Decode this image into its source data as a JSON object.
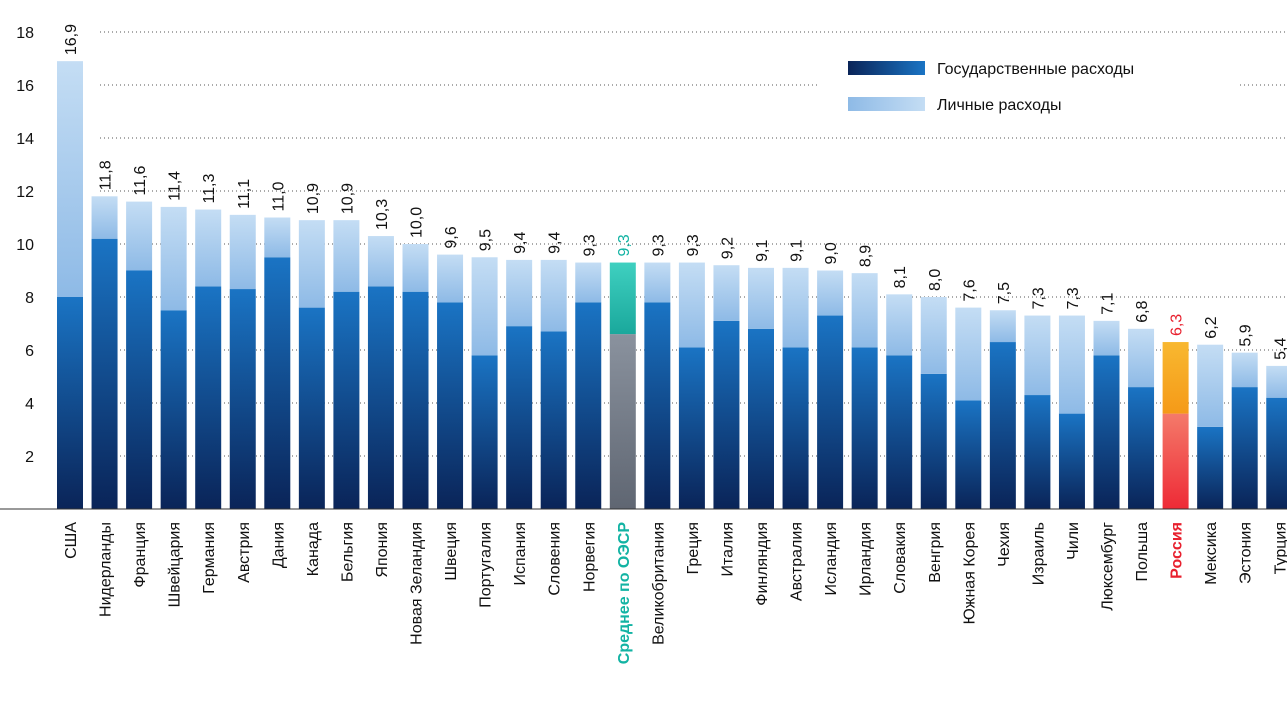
{
  "chart_data": {
    "type": "stacked_bar",
    "categories": [
      "США",
      "Нидерланды",
      "Франция",
      "Швейцария",
      "Германия",
      "Австрия",
      "Дания",
      "Канада",
      "Бельгия",
      "Япония",
      "Новая Зеландия",
      "Швеция",
      "Португалия",
      "Испания",
      "Словения",
      "Норвегия",
      "Среднее по ОЭСР",
      "Великобритания",
      "Греция",
      "Италия",
      "Финляндия",
      "Австралия",
      "Исландия",
      "Ирландия",
      "Словакия",
      "Венгрия",
      "Южная Корея",
      "Чехия",
      "Израиль",
      "Чили",
      "Люксембург",
      "Польша",
      "Россия",
      "Мексика",
      "Эстония",
      "Турция"
    ],
    "series": [
      {
        "name": "Государственные расходы",
        "color": "#0a2458",
        "color_end": "#1a74c4",
        "values": [
          8.0,
          10.2,
          9.0,
          7.5,
          8.4,
          8.3,
          9.5,
          7.6,
          8.2,
          8.4,
          8.2,
          7.8,
          5.8,
          6.9,
          6.7,
          7.8,
          6.6,
          7.8,
          6.1,
          7.1,
          6.8,
          6.1,
          7.3,
          6.1,
          5.8,
          5.1,
          4.1,
          6.3,
          4.3,
          3.6,
          5.8,
          4.6,
          3.6,
          3.1,
          4.6,
          4.2
        ]
      },
      {
        "name": "Личные расходы",
        "color": "#8ebae6",
        "color_end": "#c4ddf4",
        "values": [
          8.9,
          1.6,
          2.6,
          3.9,
          2.9,
          2.8,
          1.5,
          3.3,
          2.7,
          1.9,
          1.8,
          1.8,
          3.7,
          2.5,
          2.7,
          1.5,
          2.7,
          1.5,
          3.2,
          2.1,
          2.3,
          3.0,
          1.7,
          2.8,
          2.3,
          2.9,
          3.5,
          1.2,
          3.0,
          3.7,
          1.3,
          2.2,
          2.7,
          3.1,
          1.3,
          1.2
        ]
      }
    ],
    "totals": [
      16.9,
      11.8,
      11.6,
      11.4,
      11.3,
      11.1,
      11.0,
      10.9,
      10.9,
      10.3,
      10.0,
      9.6,
      9.5,
      9.4,
      9.4,
      9.3,
      9.3,
      9.3,
      9.3,
      9.2,
      9.1,
      9.1,
      9.0,
      8.9,
      8.1,
      8.0,
      7.6,
      7.5,
      7.3,
      7.3,
      7.1,
      6.8,
      6.3,
      6.2,
      5.9,
      5.4
    ],
    "total_labels": [
      "16,9",
      "11,8",
      "11,6",
      "11,4",
      "11,3",
      "11,1",
      "11,0",
      "10,9",
      "10,9",
      "10,3",
      "10,0",
      "9,6",
      "9,5",
      "9,4",
      "9,4",
      "9,3",
      "9,3",
      "9,3",
      "9,3",
      "9,2",
      "9,1",
      "9,1",
      "9,0",
      "8,9",
      "8,1",
      "8,0",
      "7,6",
      "7,5",
      "7,3",
      "7,3",
      "7,1",
      "6,8",
      "6,3",
      "6,2",
      "5,9",
      "5,4"
    ],
    "highlights": [
      {
        "category": "Среднее по ОЭСР",
        "colors": [
          "#5f6672",
          "#8a929e"
        ],
        "private_colors": [
          "#1aa89c",
          "#3fd0c0"
        ],
        "label_color": "#12b3a3"
      },
      {
        "category": "Россия",
        "colors": [
          "#ee2a36",
          "#f47a6a"
        ],
        "private_colors": [
          "#f59a18",
          "#f8b830"
        ],
        "label_color": "#e8202e"
      }
    ],
    "ylim": [
      0,
      18
    ],
    "yticks": [
      2,
      4,
      6,
      8,
      10,
      12,
      14,
      16,
      18
    ],
    "grid": true,
    "legend": "top-right"
  }
}
